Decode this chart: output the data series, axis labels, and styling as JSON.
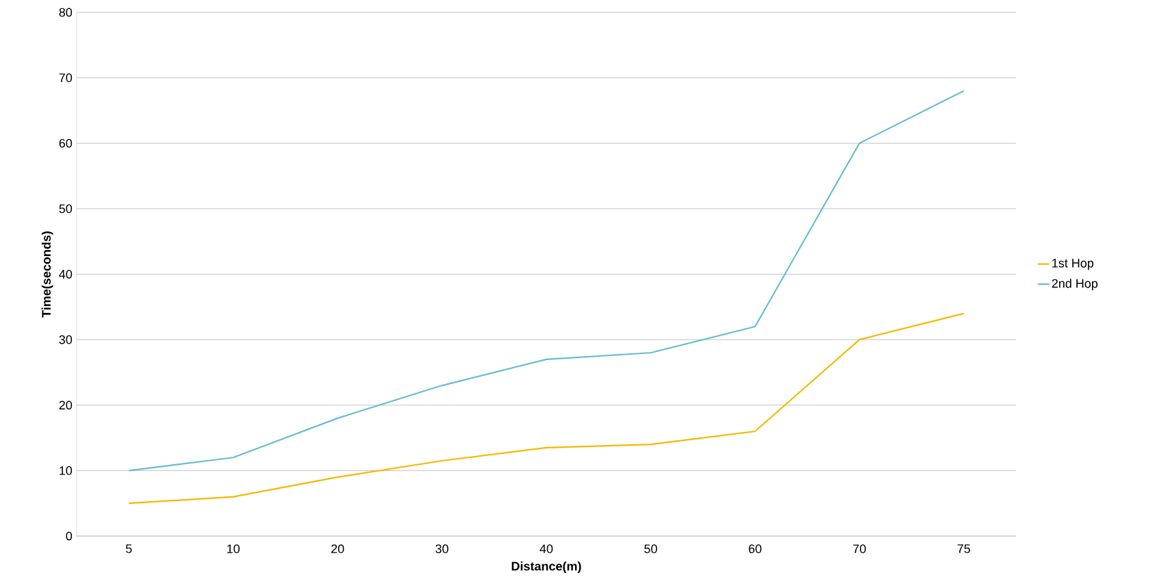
{
  "chart_data": {
    "type": "line",
    "xlabel": "Distance(m)",
    "ylabel": "Time(seconds)",
    "categories": [
      "5",
      "10",
      "20",
      "30",
      "40",
      "50",
      "60",
      "70",
      "75"
    ],
    "series": [
      {
        "name": "1st Hop",
        "color": "#f5b800",
        "values": [
          5,
          6,
          9,
          11.5,
          13.5,
          14,
          16,
          30,
          34
        ]
      },
      {
        "name": "2nd Hop",
        "color": "#66bcd3",
        "values": [
          10,
          12,
          18,
          23,
          27,
          28,
          32,
          60,
          68
        ]
      }
    ],
    "ylim": [
      0,
      80
    ],
    "yticks": [
      0,
      10,
      20,
      30,
      40,
      50,
      60,
      70,
      80
    ],
    "grid": "y",
    "legend": "right",
    "marker": "none",
    "line_style": "solid"
  }
}
